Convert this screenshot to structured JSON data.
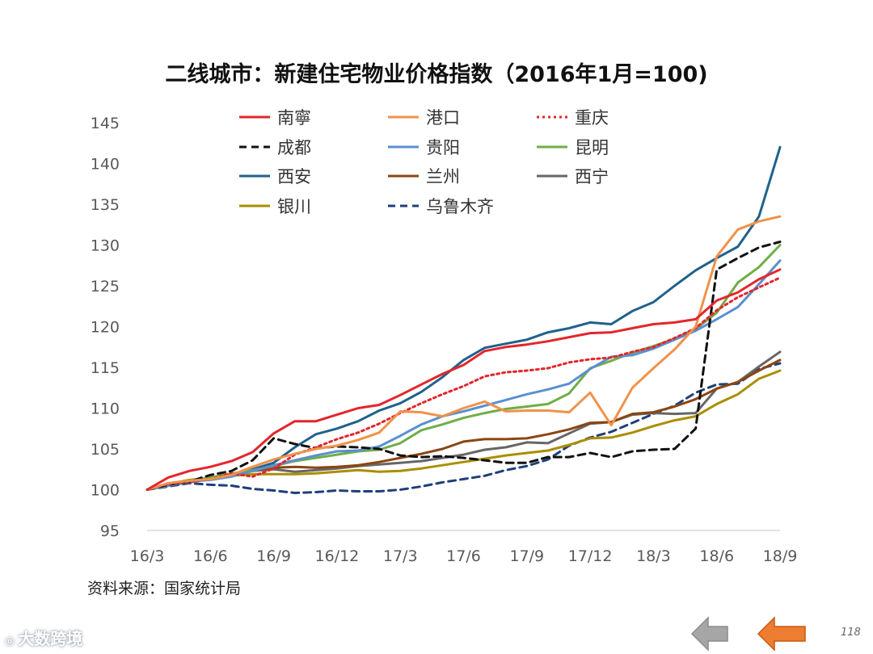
{
  "slide": {
    "title": "二线城市：新建住宅物业价格指数（2016年1月=100)",
    "source": "资料来源：国家统计局",
    "page_number": "118",
    "watermark": "大数跨境",
    "nav": {
      "prev_color": "#a6a6a6",
      "next_color": "#ed7d31"
    }
  },
  "chart_data": {
    "type": "line",
    "title": "二线城市：新建住宅物业价格指数（2016年1月=100)",
    "xlabel": "",
    "ylabel": "",
    "ylim": [
      95,
      145
    ],
    "yticks": [
      95,
      100,
      105,
      110,
      115,
      120,
      125,
      130,
      135,
      140,
      145
    ],
    "x_tick_labels": [
      "16/3",
      "16/6",
      "16/9",
      "16/12",
      "17/3",
      "17/6",
      "17/9",
      "17/12",
      "18/3",
      "18/6",
      "18/9"
    ],
    "x_tick_positions": [
      0,
      3,
      6,
      9,
      12,
      15,
      18,
      21,
      24,
      27,
      30
    ],
    "grid": false,
    "legend_position": "top",
    "series": [
      {
        "name": "南寧",
        "color": "#e3262b",
        "dash": "solid",
        "values": [
          100,
          101.5,
          102.3,
          102.8,
          103.5,
          104.6,
          106.9,
          108.4,
          108.4,
          109.2,
          110.0,
          110.4,
          111.6,
          112.9,
          114.2,
          115.3,
          117.0,
          117.5,
          117.8,
          118.2,
          118.7,
          119.2,
          119.3,
          119.8,
          120.3,
          120.5,
          120.9,
          123.2,
          124.2,
          125.8,
          127.0
        ]
      },
      {
        "name": "港口",
        "color": "#f0924a",
        "dash": "solid",
        "values": [
          100,
          100.8,
          101.1,
          101.3,
          101.8,
          102.8,
          103.7,
          104.4,
          105.0,
          105.4,
          106.1,
          107.0,
          109.6,
          109.5,
          109.0,
          110.0,
          110.8,
          109.6,
          109.7,
          109.7,
          109.5,
          111.9,
          107.9,
          112.5,
          114.9,
          117.2,
          120.0,
          128.6,
          131.9,
          132.9,
          133.5
        ]
      },
      {
        "name": "重庆",
        "color": "#e3262b",
        "dash": "dotted",
        "values": [
          100,
          100.7,
          101.0,
          101.3,
          102.0,
          101.6,
          102.6,
          104.3,
          105.2,
          106.2,
          107.0,
          108.1,
          109.4,
          110.6,
          111.7,
          112.7,
          113.9,
          114.4,
          114.6,
          114.9,
          115.6,
          116.0,
          116.2,
          116.9,
          117.5,
          118.6,
          119.8,
          122.0,
          123.6,
          124.8,
          126.0
        ]
      },
      {
        "name": "成都",
        "color": "#111111",
        "dash": "dashed",
        "values": [
          100,
          100.6,
          101.0,
          101.8,
          102.3,
          103.6,
          106.3,
          105.6,
          105.1,
          105.3,
          105.2,
          105.0,
          104.2,
          104.0,
          104.1,
          103.9,
          103.6,
          103.3,
          103.3,
          104.0,
          104.0,
          104.5,
          104.0,
          104.7,
          104.9,
          105.0,
          107.5,
          127.0,
          128.4,
          129.7,
          130.4
        ]
      },
      {
        "name": "贵阳",
        "color": "#5b8fd0",
        "dash": "solid",
        "values": [
          100,
          100.5,
          101.0,
          101.2,
          101.6,
          102.3,
          103.0,
          103.6,
          104.2,
          104.7,
          104.8,
          105.3,
          106.6,
          108.0,
          109.0,
          109.6,
          110.3,
          111.0,
          111.7,
          112.3,
          113.0,
          114.8,
          116.3,
          116.5,
          117.3,
          118.4,
          119.5,
          120.9,
          122.4,
          125.2,
          128.1
        ]
      },
      {
        "name": "昆明",
        "color": "#70ad47",
        "dash": "solid",
        "values": [
          100,
          100.7,
          101.1,
          101.5,
          102.0,
          102.4,
          102.9,
          103.5,
          103.9,
          104.3,
          104.7,
          104.9,
          105.7,
          107.3,
          108.0,
          108.8,
          109.4,
          109.9,
          110.2,
          110.5,
          111.8,
          114.9,
          115.8,
          116.8,
          117.6,
          118.5,
          119.7,
          121.7,
          125.4,
          127.3,
          130.0
        ]
      },
      {
        "name": "西安",
        "color": "#20618d",
        "dash": "solid",
        "values": [
          100,
          100.6,
          101.0,
          101.4,
          101.9,
          102.5,
          103.3,
          105.2,
          106.8,
          107.5,
          108.4,
          109.7,
          110.6,
          112.0,
          113.8,
          115.9,
          117.4,
          117.9,
          118.4,
          119.3,
          119.8,
          120.5,
          120.3,
          121.9,
          123.0,
          125.0,
          126.9,
          128.4,
          129.8,
          133.5,
          142.0
        ]
      },
      {
        "name": "兰州",
        "color": "#8b4513",
        "dash": "solid",
        "values": [
          100,
          100.6,
          101.0,
          101.4,
          101.9,
          102.4,
          102.7,
          102.8,
          102.7,
          102.8,
          103.0,
          103.4,
          103.9,
          104.4,
          105.0,
          105.9,
          106.2,
          106.2,
          106.3,
          106.8,
          107.4,
          108.2,
          108.3,
          109.3,
          109.5,
          110.2,
          111.1,
          112.4,
          113.2,
          114.6,
          115.9
        ]
      },
      {
        "name": "西宁",
        "color": "#666666",
        "dash": "solid",
        "values": [
          100,
          100.5,
          100.9,
          101.3,
          101.8,
          102.3,
          102.5,
          102.2,
          102.4,
          102.6,
          102.9,
          103.1,
          103.3,
          103.5,
          103.9,
          104.3,
          104.9,
          105.2,
          105.8,
          105.7,
          106.9,
          108.1,
          108.3,
          109.2,
          109.4,
          109.3,
          109.4,
          112.4,
          113.2,
          115.1,
          116.9
        ]
      },
      {
        "name": "银川",
        "color": "#a98e00",
        "dash": "solid",
        "values": [
          100,
          100.7,
          101.2,
          101.4,
          101.7,
          101.9,
          101.9,
          101.9,
          102.0,
          102.2,
          102.4,
          102.2,
          102.3,
          102.6,
          103.0,
          103.4,
          103.8,
          104.2,
          104.5,
          104.8,
          105.5,
          106.3,
          106.4,
          107.0,
          107.8,
          108.5,
          109.0,
          110.5,
          111.7,
          113.6,
          114.6
        ]
      },
      {
        "name": "乌鲁木齐",
        "color": "#1f3f7a",
        "dash": "dashed",
        "values": [
          100,
          100.4,
          100.8,
          100.6,
          100.5,
          100.1,
          99.9,
          99.6,
          99.7,
          99.9,
          99.8,
          99.8,
          100.0,
          100.4,
          100.9,
          101.3,
          101.7,
          102.4,
          102.9,
          103.7,
          105.4,
          106.4,
          107.1,
          108.2,
          109.3,
          110.3,
          111.9,
          112.9,
          113.0,
          114.8,
          115.5
        ]
      }
    ]
  }
}
